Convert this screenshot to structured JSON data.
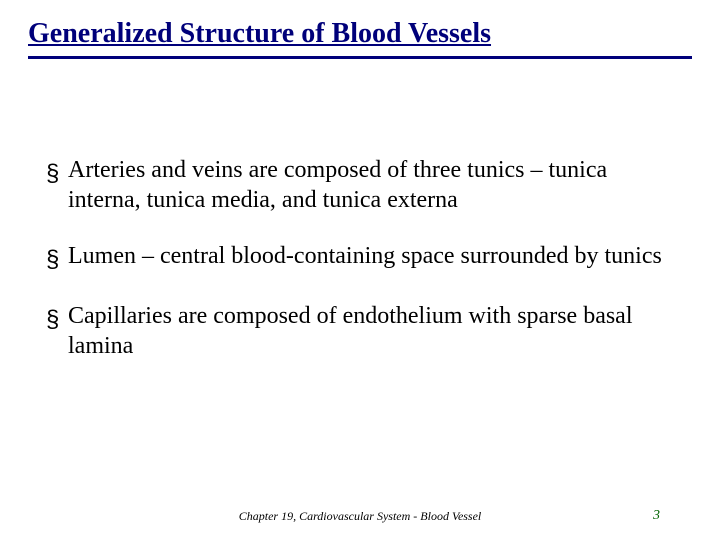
{
  "slide": {
    "title": "Generalized Structure of Blood Vessels",
    "title_color": "#00007a",
    "title_fontsize": 28,
    "title_rule_color": "#00007a",
    "background_color": "#ffffff",
    "bullets": [
      "Arteries and veins are composed of  three tunics – tunica interna, tunica media, and tunica externa",
      "Lumen – central blood-containing space surrounded by tunics",
      "Capillaries are composed of endothelium with sparse basal lamina"
    ],
    "bullet_glyph": "§",
    "bullet_color": "#000000",
    "bullet_fontsize": 24,
    "footer_text": "Chapter 19, Cardiovascular System - Blood Vessel",
    "footer_fontsize": 12,
    "footer_color": "#000000",
    "page_number": "3",
    "page_number_color": "#006400",
    "page_number_fontsize": 14
  }
}
